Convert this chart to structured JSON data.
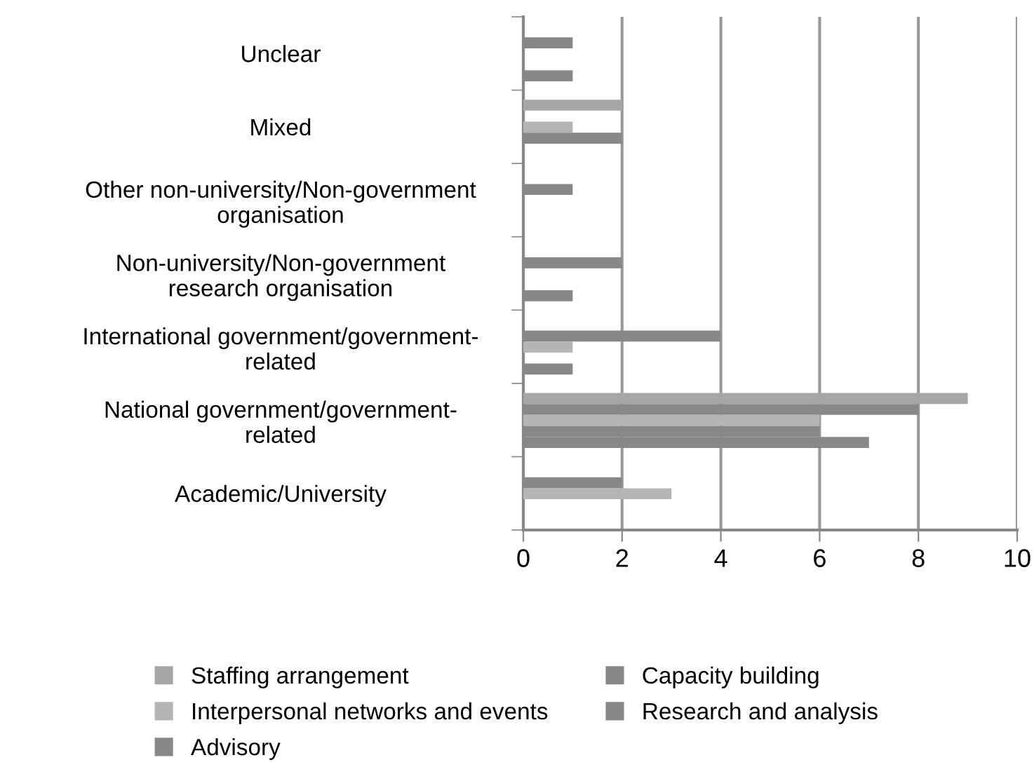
{
  "chart_data": {
    "type": "bar",
    "orientation": "horizontal",
    "categories": [
      "Unclear",
      "Mixed",
      "Other non-university/Non-government\norganisation",
      "Non-university/Non-government\nresearch organisation",
      "International government/government-\nrelated",
      "National government/government-\nrelated",
      "Academic/University"
    ],
    "series": [
      {
        "name": "Staffing arrangement",
        "color": "#a6a6a9",
        "values": [
          0,
          2,
          0,
          0,
          0,
          9,
          0
        ]
      },
      {
        "name": "Capacity building",
        "color": "#88888b",
        "values": [
          1,
          0,
          1,
          2,
          4,
          8,
          2
        ]
      },
      {
        "name": "Interpersonal networks and events",
        "color": "#b5b5b8",
        "values": [
          0,
          1,
          0,
          0,
          1,
          6,
          3
        ]
      },
      {
        "name": "Research and analysis",
        "color": "#88888b",
        "values": [
          0,
          2,
          0,
          0,
          0,
          6,
          0
        ]
      },
      {
        "name": "Advisory",
        "color": "#88888b",
        "values": [
          1,
          0,
          0,
          1,
          1,
          7,
          0
        ]
      }
    ],
    "xlim": [
      0,
      10
    ],
    "xticks": [
      0,
      2,
      4,
      6,
      8,
      10
    ],
    "grid": "x",
    "legend": "bottom"
  }
}
